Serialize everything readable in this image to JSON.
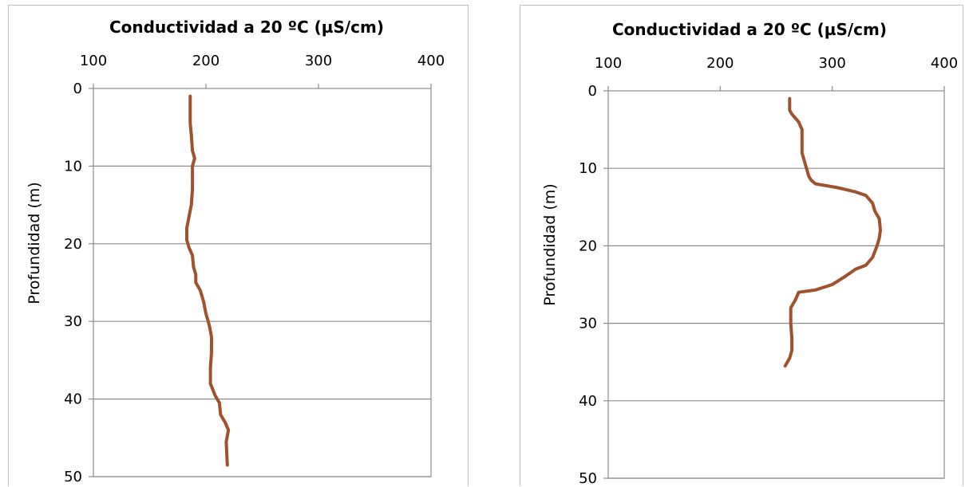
{
  "chart_data": [
    {
      "type": "line",
      "title": "Conductividad  a  20 ºC (µS/cm)",
      "xlabel": "",
      "ylabel": "Profundidad (m)",
      "xlim": [
        100,
        400
      ],
      "ylim": [
        0,
        50
      ],
      "x_axis_position": "top",
      "y_axis_inverted": true,
      "xticks": [
        "100",
        "200",
        "300",
        "400"
      ],
      "yticks": [
        "0",
        "10",
        "20",
        "30",
        "40",
        "50"
      ],
      "grid": "horizontal",
      "legend": "none",
      "series": [
        {
          "color": "#a0522d",
          "points": [
            [
              186,
              1
            ],
            [
              186,
              3
            ],
            [
              186,
              4.5
            ],
            [
              187,
              6
            ],
            [
              188,
              8
            ],
            [
              190,
              9
            ],
            [
              188,
              10
            ],
            [
              188,
              11
            ],
            [
              188,
              13
            ],
            [
              187,
              15
            ],
            [
              185,
              16.5
            ],
            [
              183,
              18
            ],
            [
              183,
              19.5
            ],
            [
              185,
              20.5
            ],
            [
              188,
              21.5
            ],
            [
              189,
              23
            ],
            [
              191,
              24
            ],
            [
              191,
              25
            ],
            [
              195,
              26
            ],
            [
              198,
              27.5
            ],
            [
              200,
              29
            ],
            [
              203,
              30.5
            ],
            [
              205,
              32
            ],
            [
              205,
              34
            ],
            [
              204,
              36
            ],
            [
              204,
              38
            ],
            [
              208,
              39.5
            ],
            [
              212,
              40.5
            ],
            [
              213,
              42
            ],
            [
              217,
              43
            ],
            [
              220,
              44
            ],
            [
              218,
              45.5
            ],
            [
              219,
              48.5
            ]
          ]
        }
      ]
    },
    {
      "type": "line",
      "title": "Conductividad  a  20 ºC (µS/cm)",
      "xlabel": "",
      "ylabel": "Profundidad (m)",
      "xlim": [
        100,
        400
      ],
      "ylim": [
        0,
        50
      ],
      "x_axis_position": "top",
      "y_axis_inverted": true,
      "xticks": [
        "100",
        "200",
        "300",
        "400"
      ],
      "yticks": [
        "0",
        "10",
        "20",
        "30",
        "40",
        "50"
      ],
      "grid": "horizontal",
      "legend": "none",
      "series": [
        {
          "color": "#a0522d",
          "points": [
            [
              262,
              1
            ],
            [
              262,
              2.5
            ],
            [
              264,
              3
            ],
            [
              270,
              4
            ],
            [
              273,
              5
            ],
            [
              273,
              6.5
            ],
            [
              273,
              8
            ],
            [
              275,
              9
            ],
            [
              277,
              10
            ],
            [
              279,
              11
            ],
            [
              281,
              11.5
            ],
            [
              285,
              12
            ],
            [
              305,
              12.5
            ],
            [
              320,
              13
            ],
            [
              330,
              13.5
            ],
            [
              336,
              14.5
            ],
            [
              338,
              15.5
            ],
            [
              342,
              16.5
            ],
            [
              343,
              18
            ],
            [
              342,
              19
            ],
            [
              340,
              20
            ],
            [
              336,
              21.5
            ],
            [
              330,
              22.5
            ],
            [
              321,
              23
            ],
            [
              311,
              24
            ],
            [
              300,
              25
            ],
            [
              285,
              25.7
            ],
            [
              270,
              26
            ],
            [
              267,
              27
            ],
            [
              263,
              28
            ],
            [
              263,
              30
            ],
            [
              264,
              32
            ],
            [
              264,
              33.5
            ],
            [
              262,
              34.5
            ],
            [
              258,
              35.5
            ]
          ]
        }
      ]
    }
  ]
}
